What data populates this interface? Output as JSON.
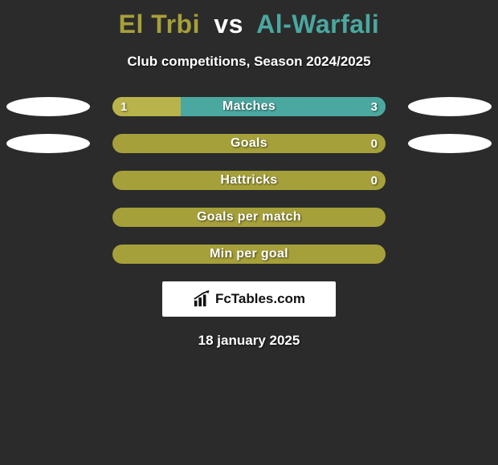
{
  "colors": {
    "background": "#2b2b2b",
    "title_a": "#a6a03a",
    "title_vs": "#ffffff",
    "title_b": "#4aa8a0",
    "bar_bg": "#a6a03a",
    "bar_left_fill": "#b9b34b",
    "bar_right_fill": "#4aa8a0",
    "avatar": "#ffffff",
    "branding_bg": "#ffffff",
    "branding_text": "#111111",
    "text_white": "#ffffff"
  },
  "title": {
    "player_a": "El Trbi",
    "vs": "vs",
    "player_b": "Al-Warfali"
  },
  "subtitle": "Club competitions, Season 2024/2025",
  "stats": [
    {
      "label": "Matches",
      "left_value": "1",
      "right_value": "3",
      "left_pct": 25,
      "right_pct": 75,
      "show_values": true,
      "show_avatars": true
    },
    {
      "label": "Goals",
      "left_value": "",
      "right_value": "0",
      "left_pct": 0,
      "right_pct": 0,
      "show_values": true,
      "show_avatars": true
    },
    {
      "label": "Hattricks",
      "left_value": "",
      "right_value": "0",
      "left_pct": 0,
      "right_pct": 0,
      "show_values": true,
      "show_avatars": false
    },
    {
      "label": "Goals per match",
      "left_value": "",
      "right_value": "",
      "left_pct": 0,
      "right_pct": 0,
      "show_values": false,
      "show_avatars": false
    },
    {
      "label": "Min per goal",
      "left_value": "",
      "right_value": "",
      "left_pct": 0,
      "right_pct": 0,
      "show_values": false,
      "show_avatars": false
    }
  ],
  "branding": {
    "text": "FcTables.com"
  },
  "date": "18 january 2025"
}
